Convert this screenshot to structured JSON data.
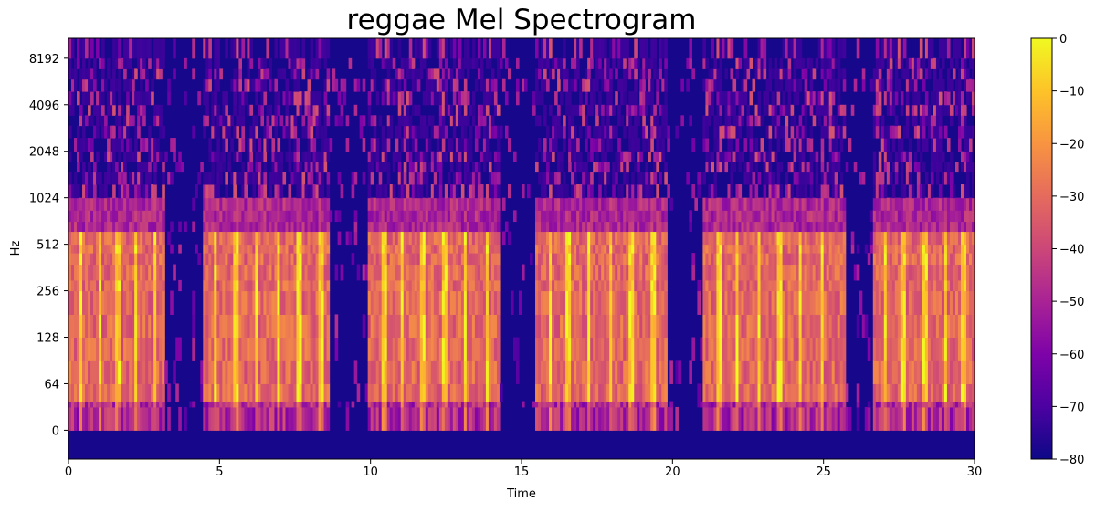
{
  "chart_data": {
    "type": "heatmap",
    "title": "reggae Mel Spectrogram",
    "xlabel": "Time",
    "ylabel": "Hz",
    "xlim": [
      0,
      30
    ],
    "x_ticks": [
      0,
      5,
      10,
      15,
      20,
      25,
      30
    ],
    "y_scale": "symlog",
    "y_ticks": [
      0,
      64,
      128,
      256,
      512,
      1024,
      2048,
      4096,
      8192
    ],
    "colormap": "plasma",
    "colorbar": {
      "range_db": [
        -80,
        0
      ],
      "ticks": [
        0,
        -10,
        -20,
        -30,
        -40,
        -50,
        -60,
        -70,
        -80
      ],
      "tick_labels": [
        "0",
        "−10",
        "−20",
        "−30",
        "−40",
        "−50",
        "−60",
        "−70",
        "−80"
      ]
    },
    "structure": {
      "loud_segments_sec": [
        [
          0,
          3.1
        ],
        [
          4.4,
          8.6
        ],
        [
          9.9,
          14.2
        ],
        [
          15.4,
          19.8
        ],
        [
          21.0,
          25.7
        ],
        [
          26.6,
          30
        ]
      ],
      "quiet_gaps_sec": [
        [
          3.1,
          4.4
        ],
        [
          8.6,
          9.9
        ],
        [
          14.2,
          15.4
        ],
        [
          19.8,
          21.0
        ],
        [
          25.7,
          26.6
        ]
      ],
      "strong_band_hz": [
        40,
        700
      ],
      "accent_beats_sec": [
        0.35,
        1.0,
        1.6,
        2.2,
        2.8,
        4.8,
        5.5,
        6.2,
        6.9,
        7.6,
        8.3,
        10.4,
        11.0,
        11.7,
        12.4,
        13.1,
        13.8,
        15.9,
        16.5,
        17.2,
        17.9,
        18.6,
        19.3,
        21.5,
        22.1,
        22.8,
        23.5,
        24.2,
        24.9,
        27.0,
        27.6,
        28.3,
        29.0,
        29.6
      ]
    }
  }
}
